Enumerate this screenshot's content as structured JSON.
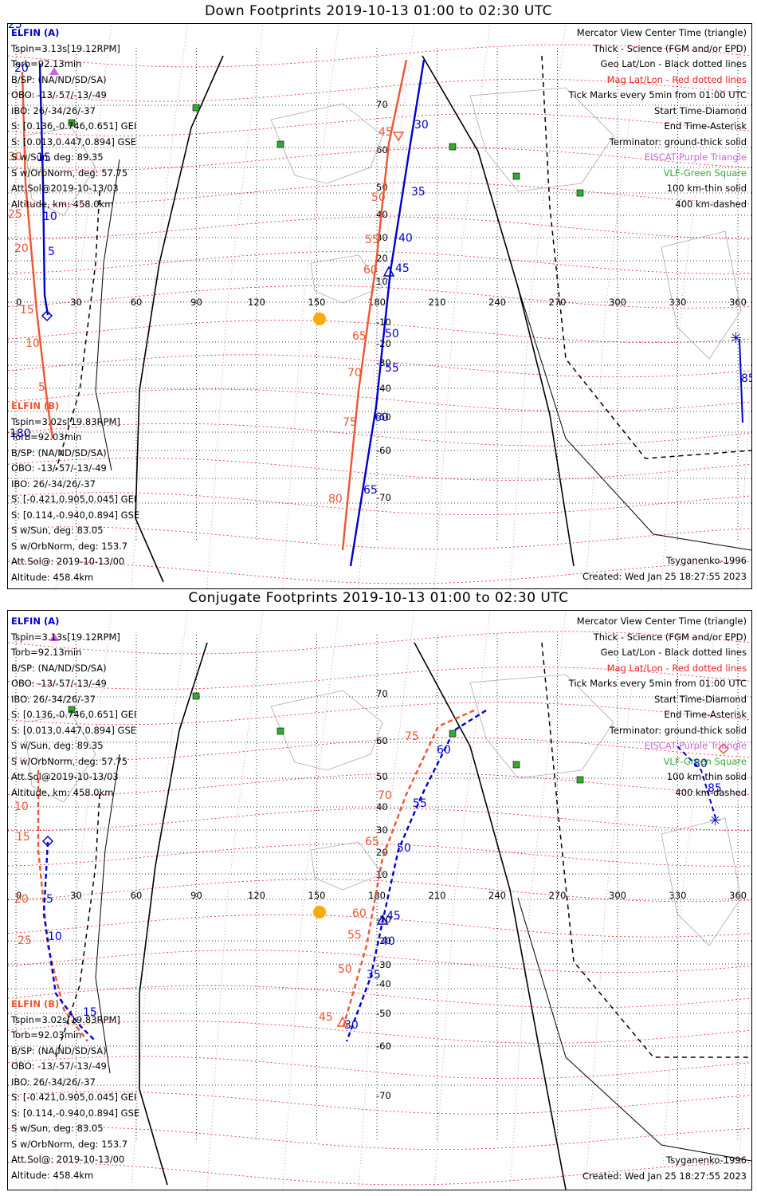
{
  "panels": [
    {
      "title": "Down Footprints 2019-10-13 01:00 to 02:30 UTC",
      "elfin_a": {
        "header": "ELFIN (A)",
        "lines": [
          "Tspin=3.13s[19.12RPM]",
          "Torb=92.13min",
          "B/SP: (NA/ND/SD/SA)",
          "OBO: -13/-57/-13/-49",
          "IBO: 26/-34/26/-37",
          "S: [0.136,-0.746,0.651] GEI",
          "S: [0.013,0.447,0.894] GSE",
          "S w/Sun, deg: 89.35",
          "S w/OrbNorm, deg: 57.75",
          "Att.Sol@2019-10-13/03",
          "Altitude, km: 458.0km"
        ]
      },
      "elfin_b": {
        "header": "ELFIN (B)",
        "lines": [
          "Tspin=3.02s[19.83RPM]",
          "Torb=92.03min",
          "B/SP: (NA/ND/SD/SA)",
          "OBO: -13/-57/-13/-49",
          "IBO: 26/-34/26/-37",
          "S: [-0.421,0.905,0.045] GEI",
          "S: [0.114,-0.940,0.894] GSE",
          "S w/Sun, deg: 83.05",
          "S w/OrbNorm, deg: 153.7",
          "Att.Sol@: 2019-10-13/00",
          "Altitude: 458.4km"
        ]
      },
      "legend": [
        "Mercator View Center Time (triangle)",
        "Thick - Science (FGM and/or EPD)",
        "Geo Lat/Lon - Black dotted lines",
        "Mag Lat/Lon - Red dotted lines",
        "Tick Marks every 5min from 01:00 UTC",
        "Start Time-Diamond",
        "End Time-Asterisk",
        "Terminator: ground-thick solid",
        "EISCAT-Purple Triangle",
        "VLF-Green Square",
        "100 km-thin solid",
        "400 km-dashed"
      ],
      "model": "Tsyganenko-1996",
      "created": "Created: Wed Jan 25 18:27:55 2023",
      "track_a_labels": [
        "5",
        "10",
        "15",
        "20",
        "25",
        "30",
        "35",
        "40",
        "45",
        "50",
        "55",
        "60",
        "65"
      ],
      "track_b_labels": [
        "5",
        "10",
        "15",
        "20",
        "25",
        "30",
        "45",
        "50",
        "55",
        "60",
        "65",
        "70",
        "75",
        "80"
      ],
      "end_label": "85",
      "edge_label": "180"
    },
    {
      "title": "Conjugate Footprints 2019-10-13 01:00 to 02:30 UTC",
      "elfin_a": {
        "header": "ELFIN (A)",
        "lines": [
          "Tspin=3.13s[19.12RPM]",
          "Torb=92.13min",
          "B/SP: (NA/ND/SD/SA)",
          "OBO: -13/-57/-13/-49",
          "IBO: 26/-34/26/-37",
          "S: [0.136,-0.746,0.651] GEI",
          "S: [0.013,0.447,0.894] GSE",
          "S w/Sun, deg: 89.35",
          "S w/OrbNorm, deg: 57.75",
          "Att.Sol@2019-10-13/03",
          "Altitude, km: 458.0km"
        ]
      },
      "elfin_b": {
        "header": "ELFIN (B)",
        "lines": [
          "Tspin=3.02s[19.83RPM]",
          "Torb=92.03min",
          "B/SP: (NA/ND/SD/SA)",
          "OBO: -13/-57/-13/-49",
          "IBO: 26/-34/26/-37",
          "S: [-0.421,0.905,0.045] GEI",
          "S: [0.114,-0.940,0.894] GSE",
          "S w/Sun, deg: 83.05",
          "S w/OrbNorm, deg: 153.7",
          "Att.Sol@: 2019-10-13/00",
          "Altitude: 458.4km"
        ]
      },
      "legend": [
        "Mercator View Center Time (triangle)",
        "Thick - Science (FGM and/or EPD)",
        "Geo Lat/Lon - Black dotted lines",
        "Mag Lat/Lon - Red dotted lines",
        "Tick Marks every 5min from 01:00 UTC",
        "Start Time-Diamond",
        "End Time-Asterisk",
        "Terminator: ground-thick solid",
        "EISCAT-Purple Triangle",
        "VLF-Green Square",
        "100 km-thin solid",
        "400 km-dashed"
      ],
      "model": "Tsyganenko-1996",
      "created": "Created: Wed Jan 25 18:27:55 2023",
      "track_a_labels": [
        "5",
        "10",
        "15",
        "30",
        "35",
        "40",
        "45",
        "50",
        "55",
        "60",
        "80",
        "85"
      ],
      "track_b_labels": [
        "10",
        "15",
        "20",
        "25",
        "45",
        "50",
        "55",
        "60",
        "65",
        "70",
        "75"
      ]
    }
  ],
  "lon_ticks": [
    "0",
    "30",
    "60",
    "90",
    "120",
    "150",
    "180",
    "210",
    "240",
    "270",
    "300",
    "330",
    "360"
  ],
  "lat_ticks_down": [
    "70",
    "60",
    "50",
    "40",
    "30",
    "20",
    "10",
    "-10",
    "-20",
    "-30",
    "-40",
    "-50",
    "-60",
    "-70"
  ],
  "lat_ticks_conj": [
    "70",
    "60",
    "50",
    "40",
    "30",
    "20",
    "10",
    "-10",
    "-20",
    "-30",
    "-40",
    "-50",
    "-60",
    "-70"
  ],
  "colors": {
    "elfin_a": "#0000cc",
    "elfin_b": "#ee5533",
    "mag_grid": "#ee2222",
    "geo_grid": "#000000",
    "eiscat": "#cc66dd",
    "vlf": "#33aa33",
    "sun": "#ffaa00"
  }
}
